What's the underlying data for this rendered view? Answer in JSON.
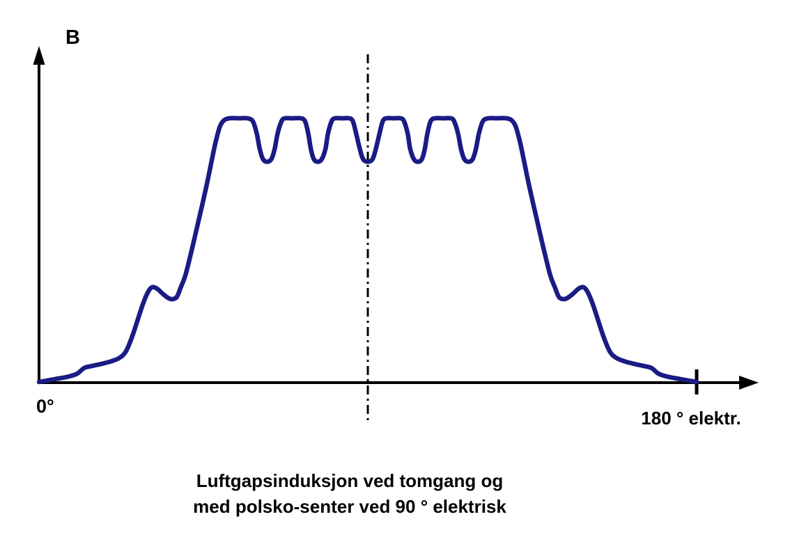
{
  "chart_data": {
    "type": "line",
    "title": "",
    "caption": [
      "Luftgapsinduksjon ved tomgang og",
      "med polsko-senter ved 90 ° elektrisk"
    ],
    "ylabel": "B",
    "xlabel_start": "0°",
    "xlabel_end": "180 ° elektr.",
    "x_unit": "electrical degrees",
    "y_unit": "airgap flux density B (relative to pole-face plateau = 1.0)",
    "x_range": [
      0,
      180
    ],
    "y_range": [
      0,
      1
    ],
    "x_ticks": [
      180
    ],
    "grid": false,
    "legend": false,
    "center_line_deg": 90,
    "axis_color": "#000000",
    "series": [
      {
        "name": "luftgapsinduksjon-tomgang",
        "color": "#1b1b85",
        "points": [
          [
            0,
            0
          ],
          [
            4.5,
            0.011
          ],
          [
            8.3,
            0.021
          ],
          [
            10.5,
            0.032
          ],
          [
            12.4,
            0.053
          ],
          [
            14.6,
            0.061
          ],
          [
            17.3,
            0.069
          ],
          [
            19.9,
            0.079
          ],
          [
            22.1,
            0.092
          ],
          [
            23.8,
            0.116
          ],
          [
            25.5,
            0.172
          ],
          [
            27,
            0.235
          ],
          [
            28.5,
            0.298
          ],
          [
            29.8,
            0.34
          ],
          [
            30.9,
            0.359
          ],
          [
            32.3,
            0.354
          ],
          [
            33.8,
            0.335
          ],
          [
            35.3,
            0.319
          ],
          [
            36.4,
            0.314
          ],
          [
            37.7,
            0.322
          ],
          [
            38.8,
            0.359
          ],
          [
            40.1,
            0.406
          ],
          [
            42,
            0.512
          ],
          [
            43.9,
            0.625
          ],
          [
            45.8,
            0.741
          ],
          [
            47.3,
            0.842
          ],
          [
            48.4,
            0.913
          ],
          [
            49.5,
            0.968
          ],
          [
            50.6,
            0.992
          ],
          [
            52.1,
            1
          ],
          [
            54.8,
            1
          ],
          [
            57,
            1
          ],
          [
            58.5,
            0.989
          ],
          [
            59.6,
            0.942
          ],
          [
            60.4,
            0.884
          ],
          [
            61.3,
            0.845
          ],
          [
            62.4,
            0.835
          ],
          [
            63.6,
            0.845
          ],
          [
            64.5,
            0.884
          ],
          [
            65.3,
            0.942
          ],
          [
            66.4,
            0.989
          ],
          [
            67.3,
            1
          ],
          [
            69.4,
            1
          ],
          [
            71.6,
            1
          ],
          [
            72.8,
            0.989
          ],
          [
            73.7,
            0.942
          ],
          [
            74.4,
            0.884
          ],
          [
            75.2,
            0.845
          ],
          [
            76.3,
            0.835
          ],
          [
            77.4,
            0.845
          ],
          [
            78.4,
            0.884
          ],
          [
            79.1,
            0.942
          ],
          [
            80.1,
            0.989
          ],
          [
            81,
            1
          ],
          [
            82.9,
            1
          ],
          [
            84.9,
            1
          ],
          [
            85.9,
            0.989
          ],
          [
            86.8,
            0.942
          ],
          [
            87.8,
            0.884
          ],
          [
            88.7,
            0.845
          ],
          [
            90,
            0.835
          ],
          [
            91.3,
            0.845
          ],
          [
            92.2,
            0.884
          ],
          [
            93.2,
            0.942
          ],
          [
            94.1,
            0.989
          ],
          [
            95.1,
            1
          ],
          [
            97.1,
            1
          ],
          [
            99,
            1
          ],
          [
            99.9,
            0.989
          ],
          [
            100.9,
            0.942
          ],
          [
            101.6,
            0.884
          ],
          [
            102.6,
            0.845
          ],
          [
            103.7,
            0.835
          ],
          [
            104.8,
            0.845
          ],
          [
            105.6,
            0.884
          ],
          [
            106.3,
            0.942
          ],
          [
            107.2,
            0.989
          ],
          [
            108.4,
            1
          ],
          [
            110.6,
            1
          ],
          [
            112.7,
            1
          ],
          [
            113.6,
            0.989
          ],
          [
            114.7,
            0.942
          ],
          [
            115.5,
            0.884
          ],
          [
            116.4,
            0.845
          ],
          [
            117.6,
            0.835
          ],
          [
            118.7,
            0.845
          ],
          [
            119.6,
            0.884
          ],
          [
            120.4,
            0.942
          ],
          [
            121.5,
            0.989
          ],
          [
            123,
            1
          ],
          [
            125.2,
            1
          ],
          [
            127.9,
            1
          ],
          [
            129.4,
            0.992
          ],
          [
            130.5,
            0.968
          ],
          [
            131.6,
            0.913
          ],
          [
            132.7,
            0.842
          ],
          [
            134.2,
            0.741
          ],
          [
            136.1,
            0.625
          ],
          [
            138,
            0.512
          ],
          [
            139.9,
            0.406
          ],
          [
            141.2,
            0.359
          ],
          [
            142.3,
            0.322
          ],
          [
            143.6,
            0.314
          ],
          [
            144.7,
            0.319
          ],
          [
            146.2,
            0.335
          ],
          [
            147.7,
            0.354
          ],
          [
            149.1,
            0.359
          ],
          [
            150.2,
            0.34
          ],
          [
            151.5,
            0.298
          ],
          [
            153,
            0.235
          ],
          [
            154.5,
            0.172
          ],
          [
            156.2,
            0.116
          ],
          [
            157.9,
            0.092
          ],
          [
            160.1,
            0.079
          ],
          [
            162.7,
            0.069
          ],
          [
            165.4,
            0.061
          ],
          [
            167.6,
            0.053
          ],
          [
            169.5,
            0.032
          ],
          [
            171.7,
            0.021
          ],
          [
            175.5,
            0.011
          ],
          [
            180,
            0
          ]
        ]
      }
    ]
  }
}
